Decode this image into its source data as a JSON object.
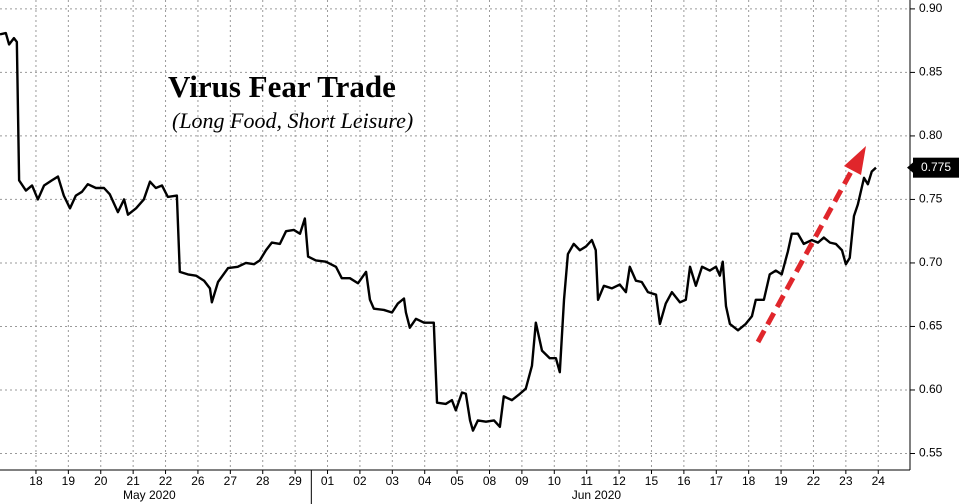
{
  "chart_data": {
    "type": "line",
    "title": "Virus Fear Trade",
    "subtitle": "(Long Food, Short Leisure)",
    "color": "#000000",
    "grid": true,
    "last_value_box": true,
    "x": [
      -1.11,
      -0.93,
      -0.83,
      -0.68,
      -0.59,
      -0.52,
      -0.31,
      -0.12,
      0.06,
      0.25,
      0.49,
      0.68,
      0.86,
      1.05,
      1.23,
      1.42,
      1.6,
      1.85,
      2.1,
      2.28,
      2.53,
      2.72,
      2.84,
      3.09,
      3.33,
      3.52,
      3.7,
      3.89,
      4.07,
      4.35,
      4.44,
      4.69,
      4.94,
      5.19,
      5.37,
      5.43,
      5.62,
      5.93,
      6.23,
      6.48,
      6.73,
      6.91,
      7.1,
      7.28,
      7.53,
      7.72,
      7.96,
      8.15,
      8.3,
      8.4,
      8.64,
      8.95,
      9.26,
      9.44,
      9.69,
      9.94,
      10.19,
      10.31,
      10.43,
      10.74,
      10.99,
      11.17,
      11.36,
      11.42,
      11.54,
      11.73,
      11.98,
      12.16,
      12.28,
      12.38,
      12.65,
      12.84,
      12.96,
      13.15,
      13.27,
      13.4,
      13.49,
      13.64,
      13.89,
      14.14,
      14.32,
      14.44,
      14.69,
      14.94,
      15.12,
      15.31,
      15.43,
      15.62,
      15.86,
      16.05,
      16.17,
      16.3,
      16.42,
      16.6,
      16.79,
      16.98,
      17.16,
      17.28,
      17.35,
      17.53,
      17.78,
      18.02,
      18.21,
      18.33,
      18.52,
      18.7,
      18.89,
      19.14,
      19.26,
      19.44,
      19.63,
      19.88,
      20.06,
      20.19,
      20.37,
      20.56,
      20.8,
      20.99,
      21.11,
      21.2,
      21.3,
      21.42,
      21.67,
      21.91,
      22.1,
      22.22,
      22.47,
      22.65,
      22.84,
      23.02,
      23.21,
      23.33,
      23.52,
      23.7,
      23.95,
      24.14,
      24.32,
      24.51,
      24.69,
      24.88,
      25.0,
      25.12,
      25.25,
      25.37,
      25.56,
      25.68,
      25.8,
      25.93
    ],
    "values": [
      0.88,
      0.881,
      0.872,
      0.877,
      0.874,
      0.765,
      0.757,
      0.761,
      0.75,
      0.761,
      0.765,
      0.768,
      0.753,
      0.743,
      0.753,
      0.756,
      0.762,
      0.759,
      0.759,
      0.754,
      0.74,
      0.75,
      0.738,
      0.743,
      0.75,
      0.764,
      0.759,
      0.761,
      0.752,
      0.753,
      0.693,
      0.691,
      0.69,
      0.686,
      0.68,
      0.669,
      0.685,
      0.696,
      0.697,
      0.7,
      0.699,
      0.702,
      0.71,
      0.716,
      0.715,
      0.725,
      0.726,
      0.723,
      0.735,
      0.705,
      0.702,
      0.701,
      0.697,
      0.688,
      0.688,
      0.684,
      0.693,
      0.671,
      0.664,
      0.663,
      0.661,
      0.668,
      0.672,
      0.661,
      0.649,
      0.656,
      0.653,
      0.653,
      0.653,
      0.59,
      0.589,
      0.592,
      0.584,
      0.598,
      0.597,
      0.576,
      0.568,
      0.576,
      0.575,
      0.576,
      0.571,
      0.595,
      0.592,
      0.597,
      0.601,
      0.619,
      0.653,
      0.631,
      0.625,
      0.625,
      0.614,
      0.671,
      0.707,
      0.715,
      0.71,
      0.713,
      0.718,
      0.71,
      0.671,
      0.682,
      0.68,
      0.683,
      0.677,
      0.697,
      0.686,
      0.685,
      0.677,
      0.675,
      0.652,
      0.668,
      0.677,
      0.669,
      0.671,
      0.697,
      0.682,
      0.697,
      0.694,
      0.697,
      0.69,
      0.701,
      0.666,
      0.652,
      0.647,
      0.652,
      0.658,
      0.671,
      0.671,
      0.691,
      0.694,
      0.691,
      0.709,
      0.723,
      0.723,
      0.715,
      0.718,
      0.716,
      0.72,
      0.716,
      0.715,
      0.71,
      0.699,
      0.704,
      0.737,
      0.746,
      0.767,
      0.762,
      0.772,
      0.775
    ],
    "xlim": [
      -1.11,
      26.98
    ],
    "xticks": [
      {
        "value": 0,
        "label": "18"
      },
      {
        "value": 1,
        "label": "19"
      },
      {
        "value": 2,
        "label": "20"
      },
      {
        "value": 3,
        "label": "21"
      },
      {
        "value": 4,
        "label": "22"
      },
      {
        "value": 5,
        "label": "26"
      },
      {
        "value": 6,
        "label": "27"
      },
      {
        "value": 7,
        "label": "28"
      },
      {
        "value": 8,
        "label": "29"
      },
      {
        "value": 9,
        "label": "01"
      },
      {
        "value": 10,
        "label": "02"
      },
      {
        "value": 11,
        "label": "03"
      },
      {
        "value": 12,
        "label": "04"
      },
      {
        "value": 13,
        "label": "05"
      },
      {
        "value": 14,
        "label": "08"
      },
      {
        "value": 15,
        "label": "09"
      },
      {
        "value": 16,
        "label": "10"
      },
      {
        "value": 17,
        "label": "11"
      },
      {
        "value": 18,
        "label": "12"
      },
      {
        "value": 19,
        "label": "15"
      },
      {
        "value": 20,
        "label": "16"
      },
      {
        "value": 21,
        "label": "17"
      },
      {
        "value": 22,
        "label": "18"
      },
      {
        "value": 23,
        "label": "19"
      },
      {
        "value": 24,
        "label": "22"
      },
      {
        "value": 25,
        "label": "23"
      },
      {
        "value": 26,
        "label": "24"
      }
    ],
    "month_labels": [
      {
        "value": 3.5,
        "label": "May 2020"
      },
      {
        "value": 17.3,
        "label": "Jun 2020"
      }
    ],
    "ylim": [
      0.537,
      0.907
    ],
    "yticks": [
      0.55,
      {
        "value": 0.6,
        "label": "0.60"
      },
      0.65,
      {
        "value": 0.7,
        "label": "0.70"
      },
      0.75,
      {
        "value": 0.8,
        "label": "0.80"
      },
      0.85,
      {
        "value": 0.9,
        "label": "0.90"
      }
    ]
  }
}
